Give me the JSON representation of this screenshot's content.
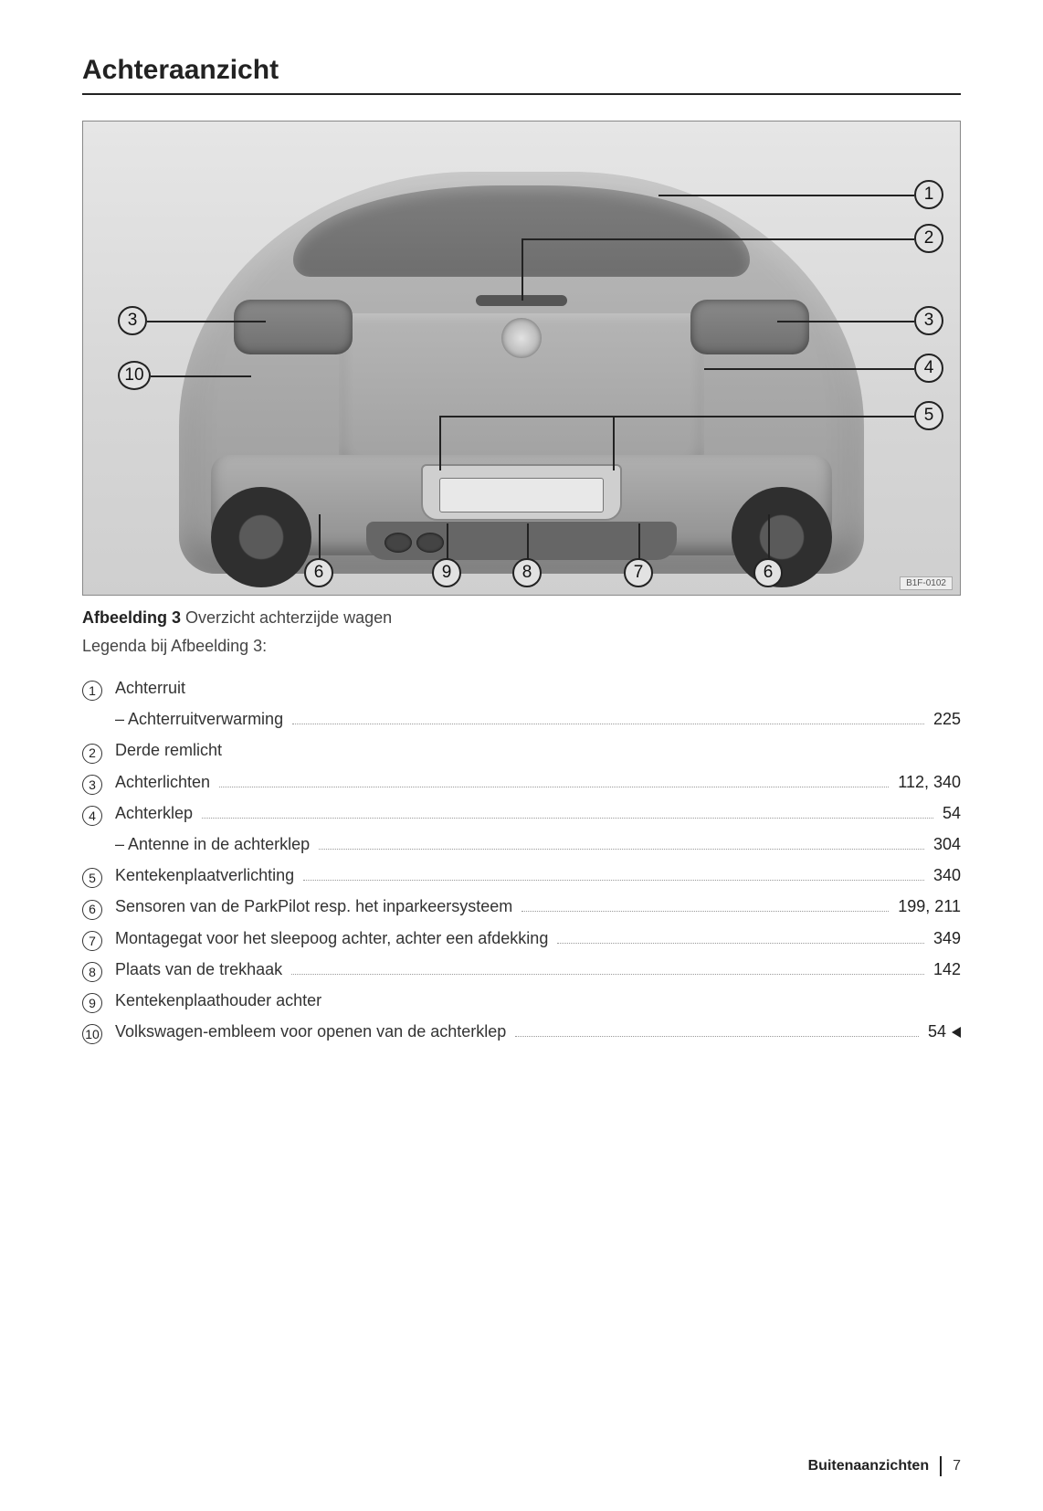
{
  "title": "Achteraanzicht",
  "figure": {
    "code": "B1F-0102",
    "callouts": {
      "c1": "1",
      "c2": "2",
      "c3l": "3",
      "c3r": "3",
      "c4": "4",
      "c5": "5",
      "c6l": "6",
      "c6r": "6",
      "c7": "7",
      "c8": "8",
      "c9": "9",
      "c10": "10"
    }
  },
  "caption_bold": "Afbeelding 3",
  "caption_rest": " Overzicht achterzijde wagen",
  "legend_intro": "Legenda bij Afbeelding 3:",
  "items": [
    {
      "n": "1",
      "label": "Achterruit",
      "page": "",
      "sub": [
        {
          "label": "Achterruitverwarming",
          "page": "225"
        }
      ]
    },
    {
      "n": "2",
      "label": "Derde remlicht",
      "page": ""
    },
    {
      "n": "3",
      "label": "Achterlichten",
      "page": "112, 340"
    },
    {
      "n": "4",
      "label": "Achterklep",
      "page": "54",
      "sub": [
        {
          "label": "Antenne in de achterklep",
          "page": "304"
        }
      ]
    },
    {
      "n": "5",
      "label": "Kentekenplaatverlichting",
      "page": "340"
    },
    {
      "n": "6",
      "label": "Sensoren van de ParkPilot resp. het inparkeersysteem",
      "page": "199, 211"
    },
    {
      "n": "7",
      "label": "Montagegat voor het sleepoog achter, achter een afdekking",
      "page": "349"
    },
    {
      "n": "8",
      "label": "Plaats van de trekhaak",
      "page": "142"
    },
    {
      "n": "9",
      "label": "Kentekenplaathouder achter",
      "page": ""
    },
    {
      "n": "10",
      "label": "Volkswagen-embleem voor openen van de achterklep",
      "page": "54",
      "marker": true
    }
  ],
  "footer": {
    "section": "Buitenaanzichten",
    "page": "7"
  }
}
